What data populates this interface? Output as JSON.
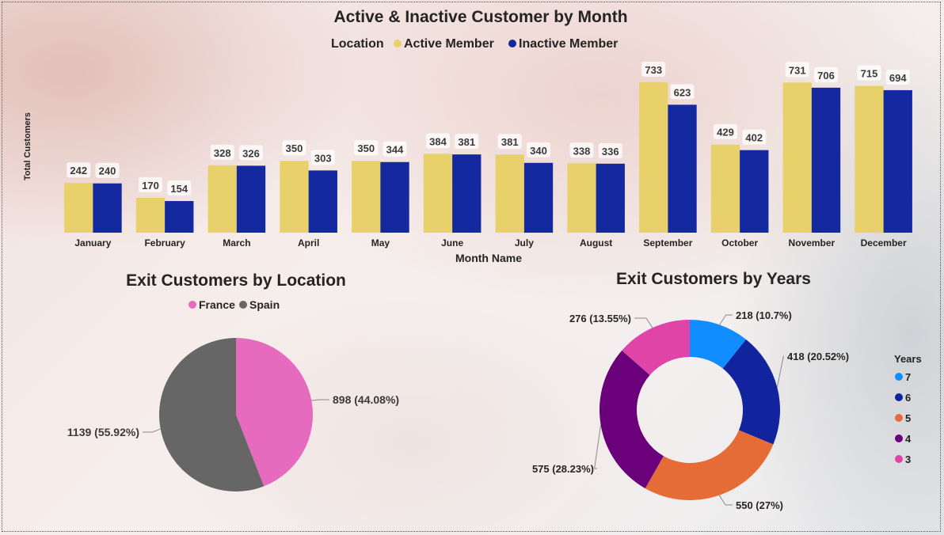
{
  "colors": {
    "active": "#E8D16B",
    "inactive": "#1428A0",
    "france": "#E66BBF",
    "spain": "#666666",
    "year7": "#118DFF",
    "year6": "#12239E",
    "year5": "#E66C37",
    "year4": "#6B007B",
    "year3": "#E044A7"
  },
  "chart_data": [
    {
      "type": "bar",
      "title": "Active & Inactive Customer by Month",
      "legend_title": "Location",
      "legend_position": "top",
      "xlabel": "Month Name",
      "ylabel": "Total Customers",
      "ylim": [
        0,
        740
      ],
      "grid": false,
      "categories": [
        "January",
        "February",
        "March",
        "April",
        "May",
        "June",
        "July",
        "August",
        "September",
        "October",
        "November",
        "December"
      ],
      "series": [
        {
          "name": "Active Member",
          "values": [
            242,
            170,
            328,
            350,
            350,
            384,
            381,
            338,
            733,
            429,
            731,
            715
          ]
        },
        {
          "name": "Inactive Member",
          "values": [
            240,
            154,
            326,
            303,
            344,
            381,
            340,
            336,
            623,
            402,
            706,
            694
          ]
        }
      ]
    },
    {
      "type": "pie",
      "title": "Exit Customers by Location",
      "legend_position": "top",
      "slices": [
        {
          "name": "France",
          "value": 898,
          "label": "898 (44.08%)"
        },
        {
          "name": "Spain",
          "value": 1139,
          "label": "1139 (55.92%)"
        }
      ]
    },
    {
      "type": "pie",
      "subtype": "donut",
      "title": "Exit Customers by Years",
      "legend_title": "Years",
      "legend_position": "right",
      "slices": [
        {
          "name": "7",
          "value": 218,
          "label": "218 (10.7%)"
        },
        {
          "name": "6",
          "value": 418,
          "label": "418 (20.52%)"
        },
        {
          "name": "5",
          "value": 550,
          "label": "550 (27%)"
        },
        {
          "name": "4",
          "value": 575,
          "label": "575 (28.23%)"
        },
        {
          "name": "3",
          "value": 276,
          "label": "276 (13.55%)"
        }
      ]
    }
  ]
}
